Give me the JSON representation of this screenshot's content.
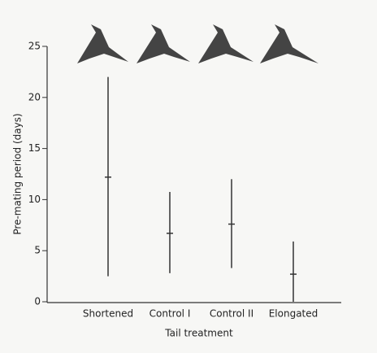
{
  "chart_data": {
    "type": "range",
    "ylabel": "Pre-mating period (days)",
    "xlabel": "Tail treatment",
    "categories": [
      "Shortened",
      "Control I",
      "Control II",
      "Elongated"
    ],
    "means": [
      12.2,
      6.7,
      7.6,
      2.7
    ],
    "low": [
      2.5,
      2.8,
      3.3,
      0
    ],
    "high": [
      22,
      10.75,
      12,
      5.9
    ],
    "color": "#333333",
    "ylim": [
      0,
      25
    ],
    "yticks": [
      0,
      5,
      10,
      15,
      20,
      25
    ]
  }
}
